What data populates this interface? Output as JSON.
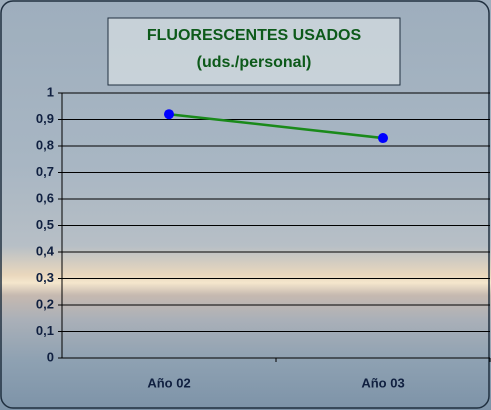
{
  "chart_data": {
    "type": "line",
    "title": "FLUORESCENTES USADOS",
    "subtitle": "(uds./personal)",
    "categories": [
      "Año 02",
      "Año 03"
    ],
    "series": [
      {
        "color": "#1a8a1a",
        "marker_color": "#0000ff",
        "values": [
          0.92,
          0.83
        ]
      }
    ],
    "ylim": [
      0,
      1
    ],
    "yticks": [
      0,
      {
        "value": 0.1,
        "label": "0,1"
      },
      {
        "value": 0.2,
        "label": "0,2"
      },
      {
        "value": 0.3,
        "label": "0,3"
      },
      {
        "value": 0.4,
        "label": "0,4"
      },
      {
        "value": 0.5,
        "label": "0,5"
      },
      {
        "value": 0.6,
        "label": "0,6"
      },
      {
        "value": 0.7,
        "label": "0,7"
      },
      {
        "value": 0.8,
        "label": "0,8"
      },
      {
        "value": 0.9,
        "label": "0,9"
      },
      1
    ],
    "grid": true
  }
}
